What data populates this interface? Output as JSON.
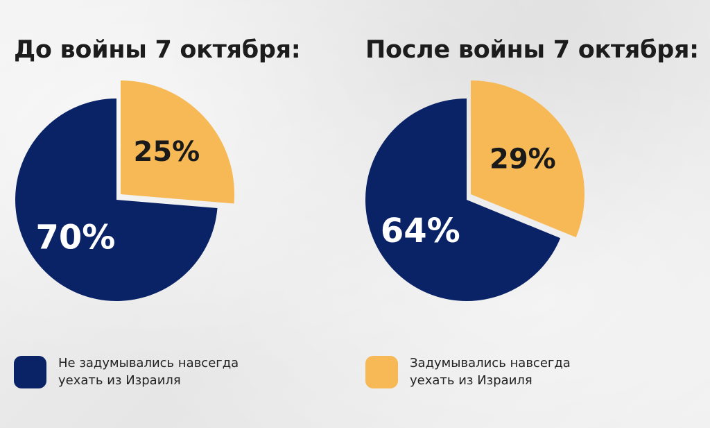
{
  "colors": {
    "navy": "#0a2266",
    "amber": "#f7b956"
  },
  "chart_data": [
    {
      "type": "pie",
      "title": "До войны 7 октября:",
      "slices": [
        {
          "label": "25%",
          "value": 25,
          "color": "#f7b956",
          "exploded": true
        },
        {
          "label": "70%",
          "value": 70,
          "color": "#0a2266",
          "exploded": false
        }
      ]
    },
    {
      "type": "pie",
      "title": "После войны 7 октября:",
      "slices": [
        {
          "label": "29%",
          "value": 29,
          "color": "#f7b956",
          "exploded": true
        },
        {
          "label": "64%",
          "value": 64,
          "color": "#0a2266",
          "exploded": false
        }
      ]
    }
  ],
  "legend": [
    {
      "color": "#0a2266",
      "line1": "Не задумывались навсегда",
      "line2": "уехать из Израиля"
    },
    {
      "color": "#f7b956",
      "line1": "Задумывались навсегда",
      "line2": "уехать из Израиля"
    }
  ]
}
